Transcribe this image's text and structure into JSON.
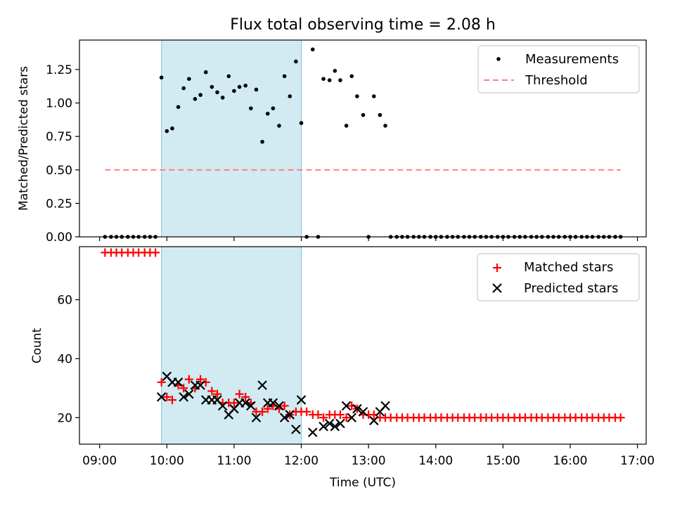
{
  "figure": {
    "title": "Flux total observing time = 2.08 h",
    "xlabel": "Time (UTC)",
    "x_ticks": [
      "09:00",
      "10:00",
      "11:00",
      "12:00",
      "13:00",
      "14:00",
      "15:00",
      "16:00",
      "17:00"
    ]
  },
  "colors": {
    "highlight": "#add8e6",
    "measurements": "#000000",
    "threshold": "#ff8080",
    "matched": "#ff0000",
    "predicted": "#000000"
  },
  "chart_data": [
    {
      "type": "scatter",
      "panel": "top",
      "title": "Flux total observing time = 2.08 h",
      "xlabel": "",
      "ylabel": "Matched/Predicted stars",
      "x_unit": "hours UTC",
      "xlim": [
        8.7,
        17.13
      ],
      "ylim": [
        0,
        1.47
      ],
      "yticks": [
        "0.00",
        "0.25",
        "0.50",
        "0.75",
        "1.00",
        "1.25"
      ],
      "ytick_values": [
        0,
        0.25,
        0.5,
        0.75,
        1.0,
        1.25
      ],
      "legend": {
        "placement": "top-right",
        "entries": [
          "Measurements",
          "Threshold"
        ]
      },
      "highlight_span": [
        9.92,
        12.0
      ],
      "series": [
        {
          "name": "Measurements",
          "x": [
            9.08,
            9.17,
            9.25,
            9.33,
            9.42,
            9.5,
            9.58,
            9.67,
            9.75,
            9.83,
            9.92,
            10.0,
            10.08,
            10.17,
            10.25,
            10.33,
            10.42,
            10.5,
            10.58,
            10.67,
            10.75,
            10.83,
            10.92,
            11.0,
            11.08,
            11.17,
            11.25,
            11.33,
            11.42,
            11.5,
            11.58,
            11.67,
            11.75,
            11.83,
            11.92,
            12.0,
            12.08,
            12.17,
            12.25,
            12.33,
            12.42,
            12.5,
            12.58,
            12.67,
            12.75,
            12.83,
            12.92,
            13.0,
            13.08,
            13.17,
            13.25,
            13.33,
            13.42,
            13.5,
            13.58,
            13.67,
            13.75,
            13.83,
            13.92,
            14.0,
            14.08,
            14.17,
            14.25,
            14.33,
            14.42,
            14.5,
            14.58,
            14.67,
            14.75,
            14.83,
            14.92,
            15.0,
            15.08,
            15.17,
            15.25,
            15.33,
            15.42,
            15.5,
            15.58,
            15.67,
            15.75,
            15.83,
            15.92,
            16.0,
            16.08,
            16.17,
            16.25,
            16.33,
            16.42,
            16.5,
            16.58,
            16.67,
            16.75
          ],
          "y": [
            0,
            0,
            0,
            0,
            0,
            0,
            0,
            0,
            0,
            0,
            1.19,
            0.79,
            0.81,
            0.97,
            1.11,
            1.18,
            1.03,
            1.06,
            1.23,
            1.12,
            1.08,
            1.04,
            1.2,
            1.09,
            1.12,
            1.13,
            0.96,
            1.1,
            0.71,
            0.92,
            0.96,
            0.83,
            1.2,
            1.05,
            1.31,
            0.85,
            0,
            1.4,
            0,
            1.18,
            1.17,
            1.24,
            1.17,
            0.83,
            1.2,
            1.05,
            0.91,
            0,
            1.05,
            0.91,
            0.83,
            0,
            0,
            0,
            0,
            0,
            0,
            0,
            0,
            0,
            0,
            0,
            0,
            0,
            0,
            0,
            0,
            0,
            0,
            0,
            0,
            0,
            0,
            0,
            0,
            0,
            0,
            0,
            0,
            0,
            0,
            0,
            0,
            0,
            0,
            0,
            0,
            0,
            0,
            0,
            0,
            0,
            0
          ]
        },
        {
          "name": "Threshold",
          "style": "dashed",
          "x": [
            9.08,
            16.75
          ],
          "y": [
            0.5,
            0.5
          ]
        }
      ]
    },
    {
      "type": "scatter",
      "panel": "bottom",
      "xlabel": "Time (UTC)",
      "ylabel": "Count",
      "x_unit": "hours UTC",
      "xlim": [
        8.7,
        17.13
      ],
      "ylim": [
        11,
        78
      ],
      "yticks": [
        "20",
        "40",
        "60"
      ],
      "ytick_values": [
        20,
        40,
        60
      ],
      "legend": {
        "placement": "top-right",
        "entries": [
          "Matched stars",
          "Predicted stars"
        ]
      },
      "highlight_span": [
        9.92,
        12.0
      ],
      "series": [
        {
          "name": "Matched stars",
          "marker": "plus",
          "x": [
            9.08,
            9.17,
            9.25,
            9.33,
            9.42,
            9.5,
            9.58,
            9.67,
            9.75,
            9.83,
            9.92,
            10.0,
            10.08,
            10.17,
            10.25,
            10.33,
            10.42,
            10.5,
            10.58,
            10.67,
            10.75,
            10.83,
            10.92,
            11.0,
            11.08,
            11.17,
            11.25,
            11.33,
            11.42,
            11.5,
            11.58,
            11.67,
            11.75,
            11.83,
            11.92,
            12.0,
            12.08,
            12.17,
            12.25,
            12.33,
            12.42,
            12.5,
            12.58,
            12.67,
            12.75,
            12.83,
            12.92,
            13.0,
            13.08,
            13.17,
            13.25,
            13.33,
            13.42,
            13.5,
            13.58,
            13.67,
            13.75,
            13.83,
            13.92,
            14.0,
            14.08,
            14.17,
            14.25,
            14.33,
            14.42,
            14.5,
            14.58,
            14.67,
            14.75,
            14.83,
            14.92,
            15.0,
            15.08,
            15.17,
            15.25,
            15.33,
            15.42,
            15.5,
            15.58,
            15.67,
            15.75,
            15.83,
            15.92,
            16.0,
            16.08,
            16.17,
            16.25,
            16.33,
            16.42,
            16.5,
            16.58,
            16.67,
            16.75
          ],
          "y": [
            76,
            76,
            76,
            76,
            76,
            76,
            76,
            76,
            76,
            76,
            32,
            27,
            26,
            31,
            30,
            33,
            30,
            33,
            32,
            29,
            28,
            25,
            25,
            25,
            28,
            27,
            25,
            22,
            22,
            23,
            24,
            23,
            24,
            21,
            22,
            22,
            22,
            21,
            21,
            20,
            21,
            21,
            21,
            20,
            24,
            23,
            21,
            21,
            21,
            20,
            20,
            20,
            20,
            20,
            20,
            20,
            20,
            20,
            20,
            20,
            20,
            20,
            20,
            20,
            20,
            20,
            20,
            20,
            20,
            20,
            20,
            20,
            20,
            20,
            20,
            20,
            20,
            20,
            20,
            20,
            20,
            20,
            20,
            20,
            20,
            20,
            20,
            20,
            20,
            20,
            20,
            20,
            20
          ]
        },
        {
          "name": "Predicted stars",
          "marker": "x",
          "x": [
            9.92,
            10.0,
            10.08,
            10.17,
            10.25,
            10.33,
            10.42,
            10.5,
            10.58,
            10.67,
            10.75,
            10.83,
            10.92,
            11.0,
            11.08,
            11.17,
            11.25,
            11.33,
            11.42,
            11.5,
            11.58,
            11.67,
            11.75,
            11.83,
            11.92,
            12.0,
            12.17,
            12.33,
            12.42,
            12.5,
            12.58,
            12.67,
            12.75,
            12.83,
            12.92,
            13.08,
            13.17,
            13.25
          ],
          "y": [
            27,
            34,
            32,
            32,
            27,
            28,
            31,
            31,
            26,
            26,
            26,
            24,
            21,
            23,
            25,
            25,
            24,
            20,
            31,
            25,
            25,
            24,
            20,
            21,
            16,
            26,
            15,
            17,
            18,
            17,
            18,
            24,
            20,
            23,
            22,
            19,
            22,
            24
          ]
        }
      ]
    }
  ]
}
